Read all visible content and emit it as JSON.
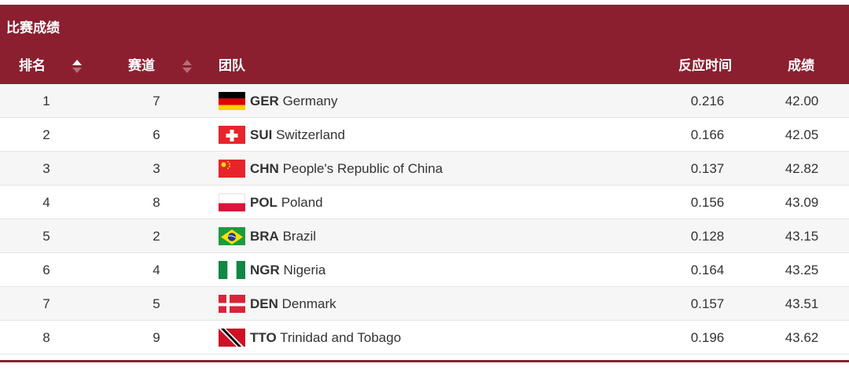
{
  "section_title": "比赛成绩",
  "columns": {
    "rank": "排名",
    "lane": "赛道",
    "team": "团队",
    "reaction": "反应时间",
    "result": "成绩"
  },
  "rows": [
    {
      "rank": "1",
      "lane": "7",
      "code": "GER",
      "country": "Germany",
      "reaction": "0.216",
      "result": "42.00",
      "flag": "germany-flag"
    },
    {
      "rank": "2",
      "lane": "6",
      "code": "SUI",
      "country": "Switzerland",
      "reaction": "0.166",
      "result": "42.05",
      "flag": "switzerland-flag"
    },
    {
      "rank": "3",
      "lane": "3",
      "code": "CHN",
      "country": "People's Republic of China",
      "reaction": "0.137",
      "result": "42.82",
      "flag": "china-flag"
    },
    {
      "rank": "4",
      "lane": "8",
      "code": "POL",
      "country": "Poland",
      "reaction": "0.156",
      "result": "43.09",
      "flag": "poland-flag"
    },
    {
      "rank": "5",
      "lane": "2",
      "code": "BRA",
      "country": "Brazil",
      "reaction": "0.128",
      "result": "43.15",
      "flag": "brazil-flag"
    },
    {
      "rank": "6",
      "lane": "4",
      "code": "NGR",
      "country": "Nigeria",
      "reaction": "0.164",
      "result": "43.25",
      "flag": "nigeria-flag"
    },
    {
      "rank": "7",
      "lane": "5",
      "code": "DEN",
      "country": "Denmark",
      "reaction": "0.157",
      "result": "43.51",
      "flag": "denmark-flag"
    },
    {
      "rank": "8",
      "lane": "9",
      "code": "TTO",
      "country": "Trinidad and Tobago",
      "reaction": "0.196",
      "result": "43.62",
      "flag": "trinidad-and-tobago-flag"
    }
  ],
  "colors": {
    "header_bg": "#8b1f30",
    "row_alt": "#f6f6f6"
  }
}
